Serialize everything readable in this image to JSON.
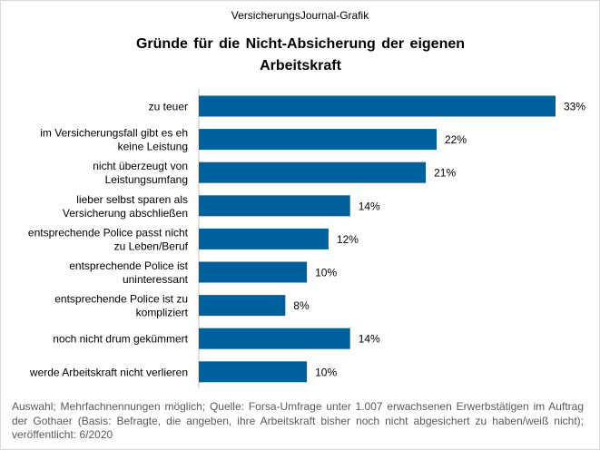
{
  "header": {
    "source_label": "VersicherungsJournal-Grafik"
  },
  "chart_data": {
    "type": "bar",
    "orientation": "horizontal",
    "title": "Gründe für die Nicht-Absicherung der eigenen Arbeitskraft",
    "title_lines": [
      "Gründe für die Nicht-Absicherung der eigenen",
      "Arbeitskraft"
    ],
    "categories": [
      "zu teuer",
      "im Versicherungsfall gibt es eh keine Leistung",
      "nicht überzeugt von Leistungsumfang",
      "lieber selbst sparen als Versicherung abschließen",
      "entsprechende Police passt nicht zu Leben/Beruf",
      "entsprechende Police ist uninteressant",
      "entsprechende Police ist zu kompliziert",
      "noch nicht drum gekümmert",
      "werde Arbeitskraft nicht verlieren"
    ],
    "category_lines": [
      [
        "zu teuer"
      ],
      [
        "im Versicherungsfall gibt es eh",
        "keine Leistung"
      ],
      [
        "nicht überzeugt von",
        "Leistungsumfang"
      ],
      [
        "lieber selbst sparen als",
        "Versicherung abschließen"
      ],
      [
        "entsprechende Police passt nicht",
        "zu Leben/Beruf"
      ],
      [
        "entsprechende Police ist",
        "uninteressant"
      ],
      [
        "entsprechende Police ist zu",
        "kompliziert"
      ],
      [
        "noch nicht drum gekümmert"
      ],
      [
        "werde Arbeitskraft nicht verlieren"
      ]
    ],
    "values": [
      33,
      22,
      21,
      14,
      12,
      10,
      8,
      14,
      10
    ],
    "value_labels": [
      "33%",
      "22%",
      "21%",
      "14%",
      "12%",
      "10%",
      "8%",
      "14%",
      "10%"
    ],
    "unit": "%",
    "xlim": [
      0,
      33
    ],
    "bar_color": "#00609c",
    "grid": false,
    "legend": "none"
  },
  "footnote": "Auswahl; Mehrfachnennungen möglich; Quelle: Forsa-Umfrage unter 1.007 erwachsenen Erwerbstätigen im Auftrag der Gothaer (Basis: Befragte, die angeben, ihre Arbeitskraft bisher noch nicht abgesichert zu haben/weiß nicht); veröffentlicht: 6/2020"
}
